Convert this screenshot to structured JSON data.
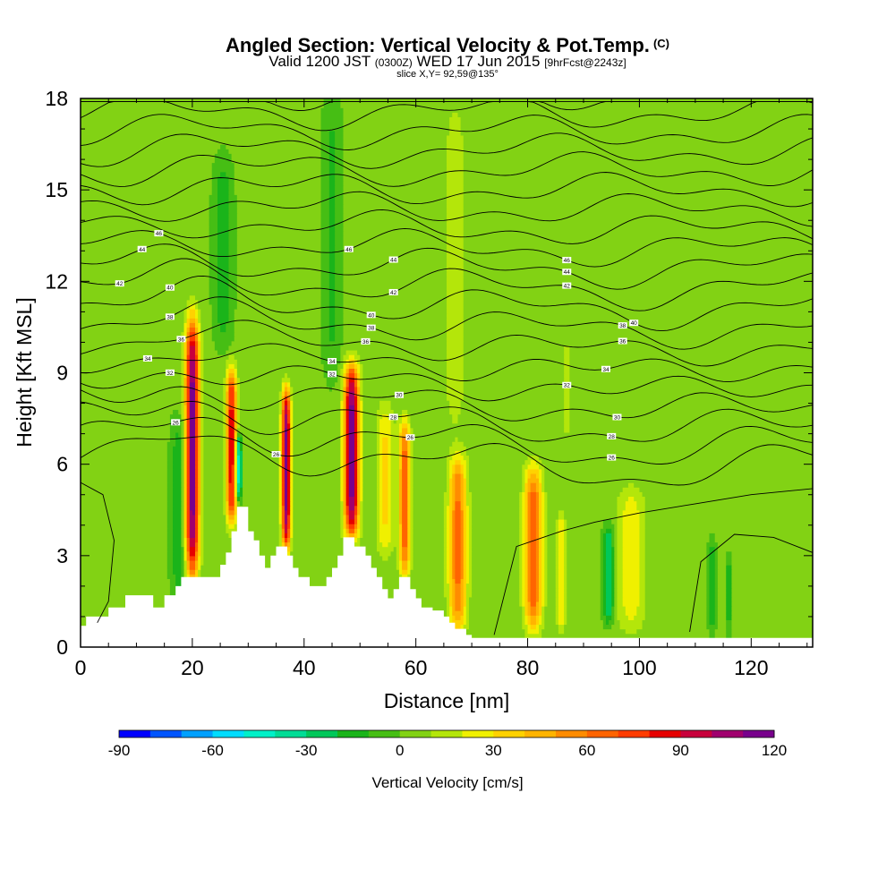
{
  "title": {
    "main": "Angled Section: Vertical Velocity & Pot.Temp.",
    "units_tag": "(C)",
    "valid_prefix": "Valid 1200 JST",
    "valid_zulu": "(0300Z)",
    "valid_date": "WED 17 Jun 2015",
    "forecast_tag": "[9hrFcst@2243z]",
    "slice": "slice X,Y= 92,59@135°"
  },
  "chart_data": {
    "type": "heatmap",
    "xlabel": "Distance [nm]",
    "ylabel": "Height [Kft MSL]",
    "xlim": [
      0,
      131
    ],
    "ylim": [
      0,
      18
    ],
    "x_ticks": [
      0,
      20,
      40,
      60,
      80,
      100,
      120
    ],
    "y_ticks": [
      0,
      3,
      6,
      9,
      12,
      15,
      18
    ],
    "colorbar": {
      "label": "Vertical Velocity [cm/s]",
      "tick_labels": [
        "-90",
        "-60",
        "-30",
        "0",
        "30",
        "60",
        "90",
        "120"
      ],
      "boundaries": [
        -90,
        -80,
        -70,
        -60,
        -50,
        -40,
        -30,
        -20,
        -10,
        0,
        10,
        20,
        30,
        40,
        50,
        60,
        70,
        80,
        90,
        100,
        110,
        120
      ],
      "colors": [
        "#0000ff",
        "#0055ff",
        "#00a0ff",
        "#00dcff",
        "#00f0c8",
        "#00dc96",
        "#00c85a",
        "#1ab41a",
        "#46be14",
        "#82d214",
        "#b4e60a",
        "#f0f000",
        "#ffd200",
        "#ffb400",
        "#ff8c00",
        "#ff6400",
        "#ff3c00",
        "#e60000",
        "#c8003c",
        "#a0006e",
        "#78008c"
      ]
    },
    "background_value": 2,
    "updraft_columns": [
      {
        "x": 20.0,
        "peak": 115,
        "width": 1.2,
        "top": 10.8,
        "bottom": 2.3
      },
      {
        "x": 27.0,
        "peak": 85,
        "width": 0.9,
        "top": 9.2,
        "bottom": 4.0
      },
      {
        "x": 36.8,
        "peak": 110,
        "width": 0.8,
        "top": 8.5,
        "bottom": 3.2
      },
      {
        "x": 48.5,
        "peak": 115,
        "width": 1.3,
        "top": 9.3,
        "bottom": 3.6
      },
      {
        "x": 58.0,
        "peak": 65,
        "width": 1.0,
        "top": 7.5,
        "bottom": 2.3
      },
      {
        "x": 67.5,
        "peak": 60,
        "width": 1.6,
        "top": 6.3,
        "bottom": 0.5
      },
      {
        "x": 81.0,
        "peak": 65,
        "width": 1.6,
        "top": 6.0,
        "bottom": 0.5
      },
      {
        "x": 86.0,
        "peak": 30,
        "width": 0.8,
        "top": 4.5,
        "bottom": 0.5
      },
      {
        "x": 98.5,
        "peak": 25,
        "width": 2.5,
        "top": 5.3,
        "bottom": 0.5
      },
      {
        "x": 54.5,
        "peak": 30,
        "width": 1.5,
        "top": 8.0,
        "bottom": 3.0
      },
      {
        "x": 67.0,
        "peak": 15,
        "width": 2.0,
        "top": 18.0,
        "bottom": 7.0
      },
      {
        "x": 87.0,
        "peak": 20,
        "width": 0.5,
        "top": 10.0,
        "bottom": 7.0
      }
    ],
    "downdraft_columns": [
      {
        "x": 28.3,
        "peak": -55,
        "width": 0.5,
        "top": 7.0,
        "bottom": 4.8
      },
      {
        "x": 94.5,
        "peak": -35,
        "width": 0.9,
        "top": 4.0,
        "bottom": 0.8
      },
      {
        "x": 17.5,
        "peak": -20,
        "width": 1.2,
        "top": 7.5,
        "bottom": 1.5
      },
      {
        "x": 113.0,
        "peak": -20,
        "width": 0.6,
        "top": 3.5,
        "bottom": 0.5
      },
      {
        "x": 116.0,
        "peak": -18,
        "width": 0.5,
        "top": 3.0,
        "bottom": 0.5
      },
      {
        "x": 25.5,
        "peak": -20,
        "width": 1.5,
        "top": 16.0,
        "bottom": 10.0
      },
      {
        "x": 45.0,
        "peak": -15,
        "width": 1.5,
        "top": 18.0,
        "bottom": 9.0
      }
    ],
    "terrain": {
      "x": [
        0,
        1,
        1,
        5,
        5,
        8,
        8,
        13,
        13,
        15,
        15,
        17,
        17,
        18,
        18,
        25,
        25,
        26,
        26,
        27,
        27,
        28,
        28,
        30,
        30,
        31,
        31,
        32,
        32,
        33,
        33,
        34,
        34,
        35,
        35,
        37,
        37,
        38,
        38,
        39,
        39,
        41,
        41,
        44,
        44,
        45,
        45,
        46,
        46,
        47,
        47,
        49,
        49,
        51,
        51,
        52,
        52,
        53,
        53,
        54,
        54,
        55,
        55,
        56,
        56,
        57,
        57,
        59,
        59,
        60,
        60,
        61,
        61,
        63,
        63,
        65,
        65,
        66,
        66,
        67,
        67,
        69,
        69,
        70,
        70,
        131
      ],
      "y": [
        0.7,
        0.7,
        1.0,
        1.0,
        1.3,
        1.3,
        1.7,
        1.7,
        1.3,
        1.3,
        1.7,
        1.7,
        2.0,
        2.0,
        2.3,
        2.3,
        2.7,
        2.7,
        3.1,
        3.1,
        3.8,
        3.8,
        4.6,
        4.6,
        3.8,
        3.8,
        3.5,
        3.5,
        3.0,
        3.0,
        2.6,
        2.6,
        3.0,
        3.0,
        3.3,
        3.3,
        3.0,
        3.0,
        2.6,
        2.6,
        2.3,
        2.3,
        2.0,
        2.0,
        2.3,
        2.3,
        2.6,
        2.6,
        3.0,
        3.0,
        3.6,
        3.6,
        3.3,
        3.3,
        3.0,
        3.0,
        2.6,
        2.6,
        2.3,
        2.3,
        1.9,
        1.9,
        1.6,
        1.6,
        1.9,
        1.9,
        2.3,
        2.3,
        1.9,
        1.9,
        1.6,
        1.6,
        1.3,
        1.3,
        1.2,
        1.2,
        1.0,
        1.0,
        0.8,
        0.8,
        0.6,
        0.6,
        0.4,
        0.4,
        0.3,
        0.3
      ]
    },
    "theta_contours": {
      "start_level": 24,
      "step": 2,
      "count": 21,
      "labels": [
        {
          "x": 17,
          "level": 26
        },
        {
          "x": 35,
          "level": 26
        },
        {
          "x": 59,
          "level": 26
        },
        {
          "x": 95,
          "level": 26
        },
        {
          "x": 56,
          "level": 28
        },
        {
          "x": 95,
          "level": 28
        },
        {
          "x": 57,
          "level": 30
        },
        {
          "x": 96,
          "level": 30
        },
        {
          "x": 16,
          "level": 32
        },
        {
          "x": 45,
          "level": 32
        },
        {
          "x": 87,
          "level": 32
        },
        {
          "x": 12,
          "level": 34
        },
        {
          "x": 45,
          "level": 34
        },
        {
          "x": 94,
          "level": 34
        },
        {
          "x": 18,
          "level": 36
        },
        {
          "x": 51,
          "level": 36
        },
        {
          "x": 97,
          "level": 36
        },
        {
          "x": 16,
          "level": 38
        },
        {
          "x": 52,
          "level": 38
        },
        {
          "x": 97,
          "level": 38
        },
        {
          "x": 16,
          "level": 40
        },
        {
          "x": 52,
          "level": 40
        },
        {
          "x": 99,
          "level": 40
        },
        {
          "x": 7,
          "level": 42
        },
        {
          "x": 56,
          "level": 42
        },
        {
          "x": 87,
          "level": 42
        },
        {
          "x": 11,
          "level": 44
        },
        {
          "x": 56,
          "level": 44
        },
        {
          "x": 87,
          "level": 44
        },
        {
          "x": 14,
          "level": 46
        },
        {
          "x": 48,
          "level": 46
        },
        {
          "x": 87,
          "level": 46
        }
      ]
    }
  }
}
